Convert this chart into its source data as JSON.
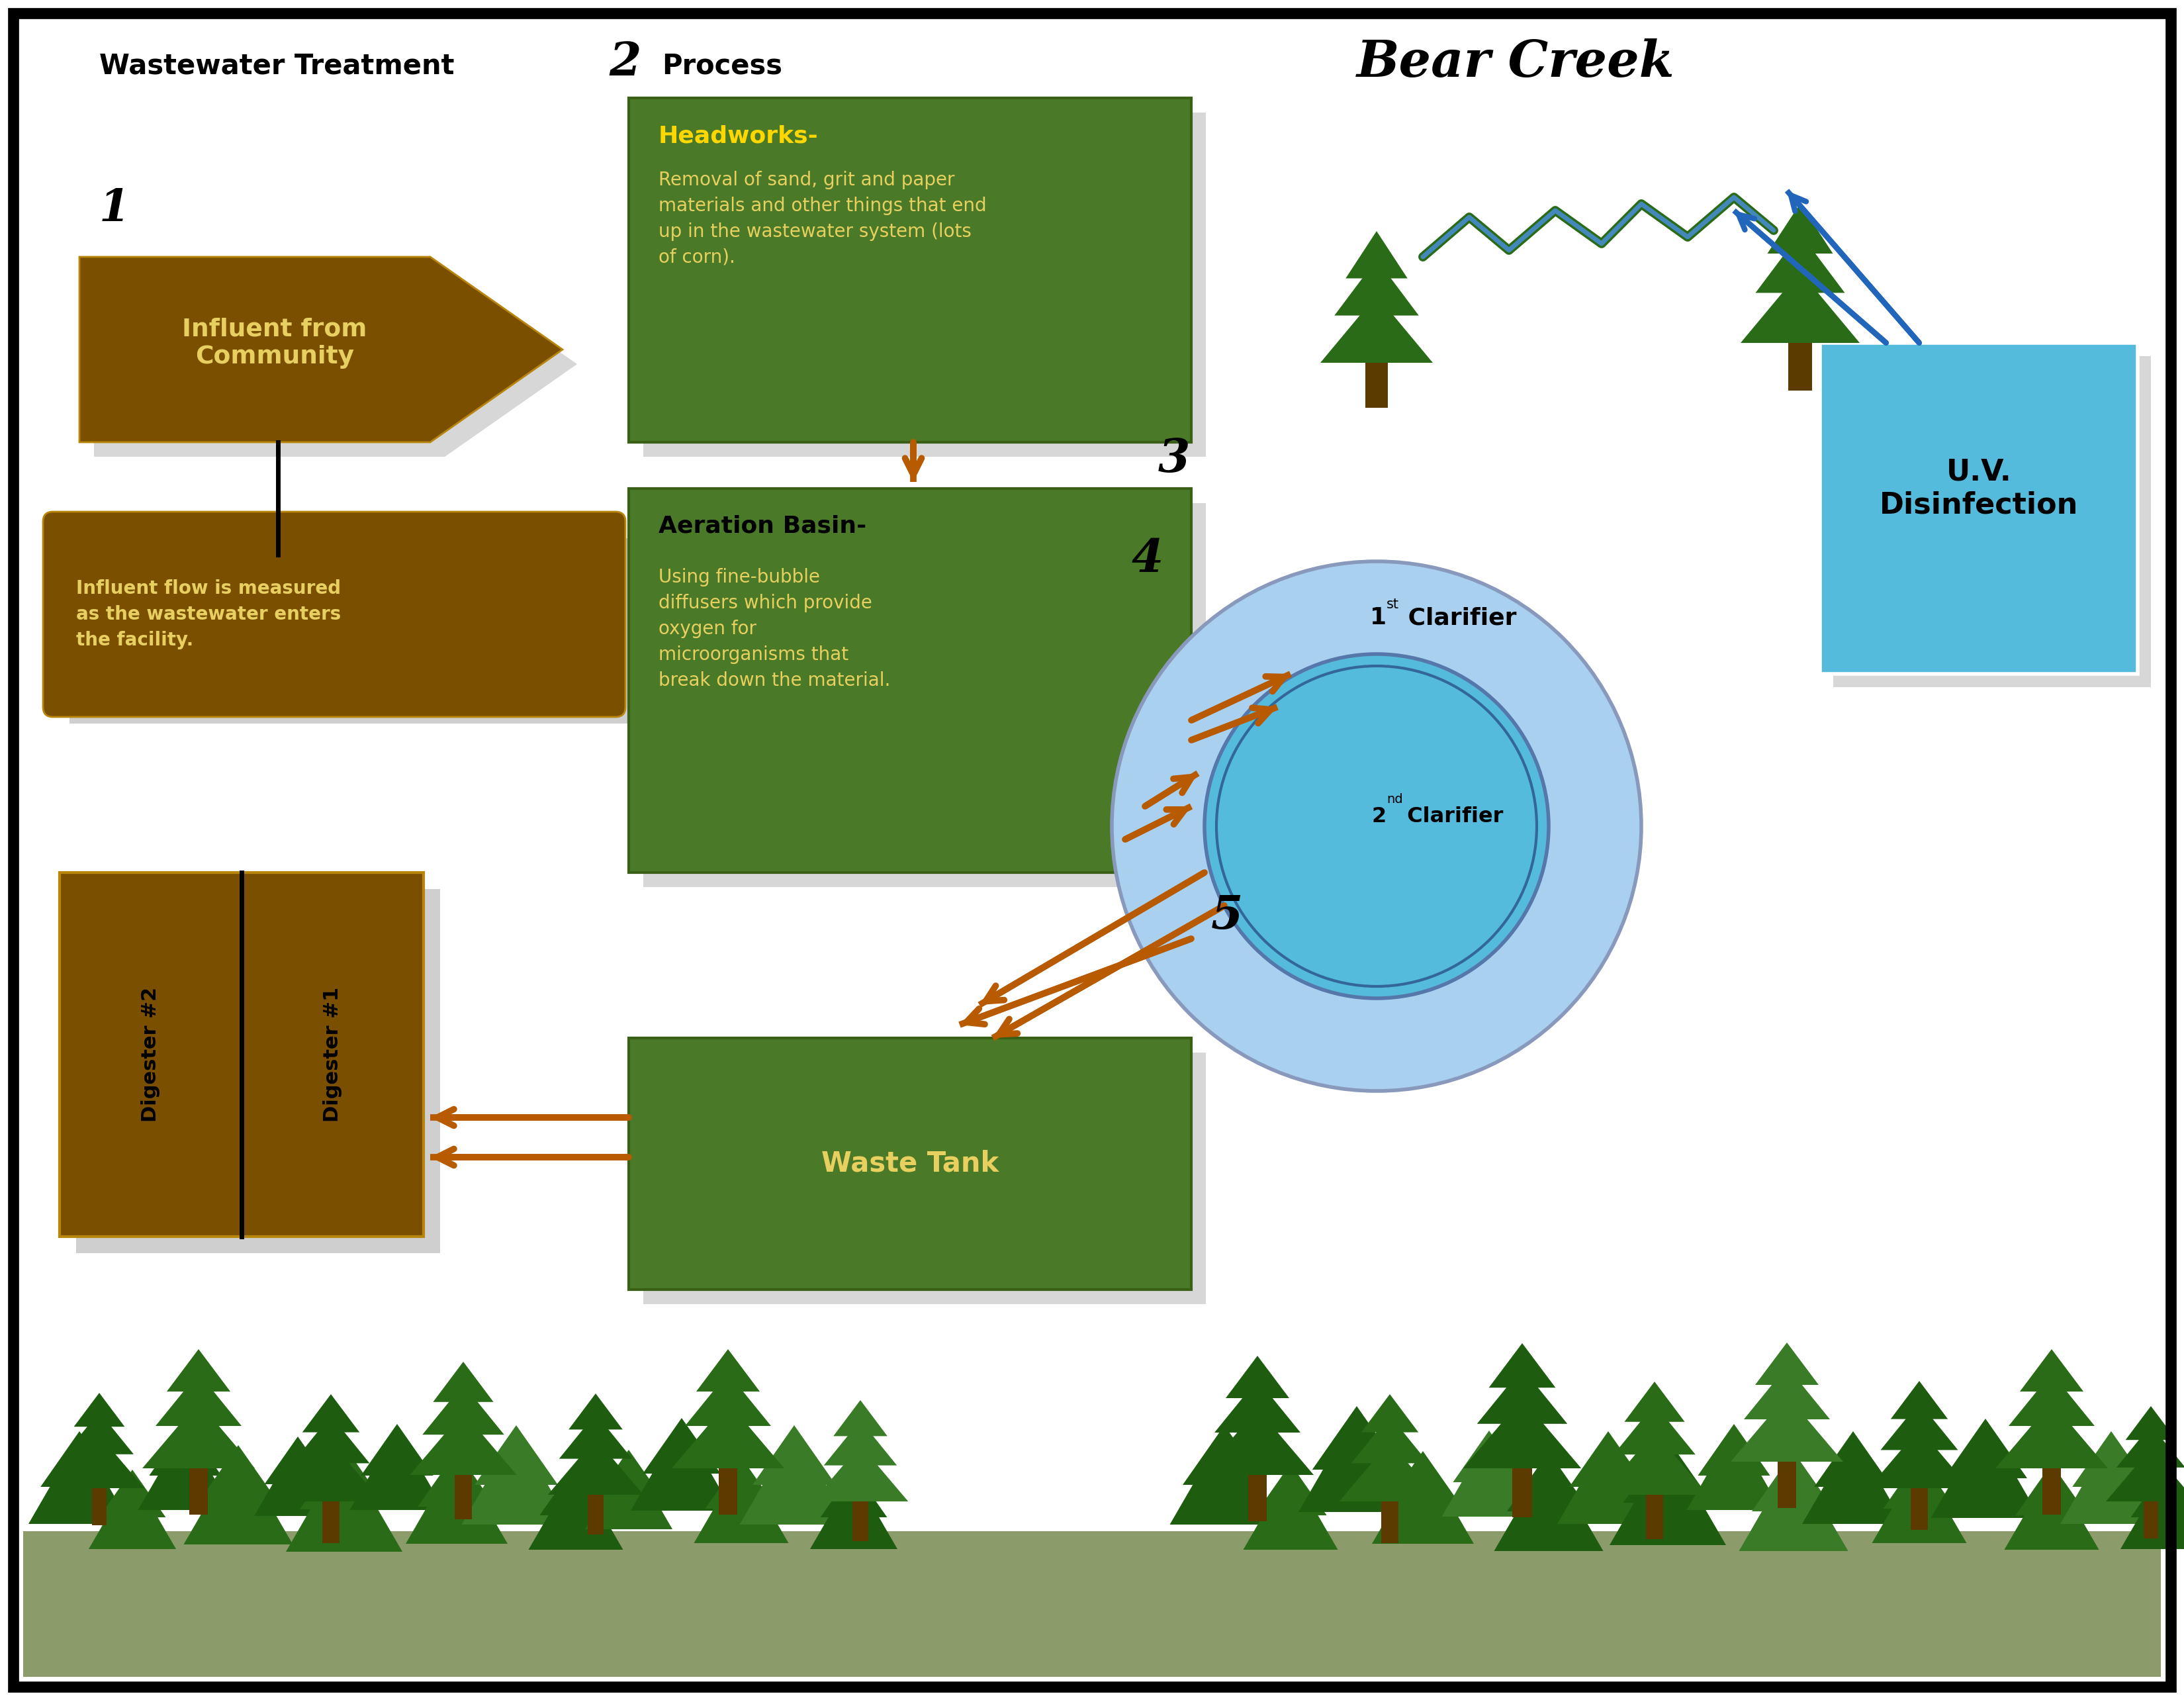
{
  "title_left": "Wastewater Treatment",
  "title_right": "Process",
  "bg_color": "#ffffff",
  "border_color": "#000000",
  "brown_color": "#7B4F00",
  "brown_edge": "#B8860B",
  "dark_brown": "#5C3A00",
  "green_color": "#4A7A28",
  "dark_green": "#3A6018",
  "yellow_text": "#E8D060",
  "orange_color": "#B85A00",
  "light_blue": "#55BBDD",
  "pale_blue": "#AAD0F0",
  "blue_arrow": "#2266BB",
  "bear_creek_title": "Bear Creek",
  "uv_label": "U.V.\nDisinfection",
  "influent_label": "Influent from\nCommunity",
  "influent_note": "Influent flow is measured\nas the wastewater enters\nthe facility.",
  "headworks_title": "Headworks-",
  "headworks_text": "Removal of sand, grit and paper\nmaterials and other things that end\nup in the wastewater system (lots\nof corn).",
  "aeration_title": "Aeration Basin-",
  "aeration_text": "Using fine-bubble\ndiffusers which provide\noxygen for\nmicroorganisms that\nbreak down the material.",
  "clarifier1_label": "1st Clarifier",
  "clarifier2_label": "2nd Clarifier",
  "waste_tank_label": "Waste Tank",
  "digester1_label": "Digester #1",
  "digester2_label": "Digester #2",
  "step1": "1",
  "step2": "2",
  "step3": "3",
  "step4": "4",
  "step5": "5",
  "forest_color_dark": "#1E5C10",
  "forest_color_mid": "#2A6B18",
  "forest_color_light": "#3A7B28",
  "ground_color": "#8B9B6A",
  "river_green": "#2A6B18",
  "river_blue": "#4488BB"
}
